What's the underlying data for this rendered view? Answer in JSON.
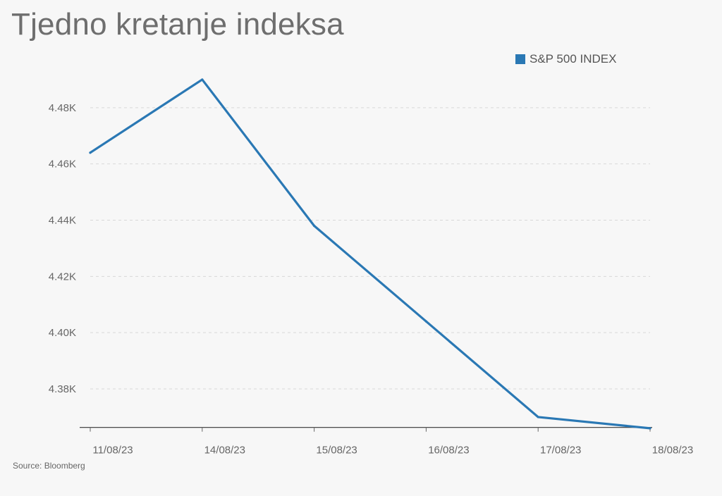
{
  "title": "Tjedno kretanje indeksa",
  "source": "Source: Bloomberg",
  "legend": {
    "label": "S&P 500 INDEX",
    "color": "#2a78b4"
  },
  "chart_data": {
    "type": "line",
    "title": "Tjedno kretanje indeksa",
    "xlabel": "",
    "ylabel": "",
    "categories": [
      "11/08/23",
      "14/08/23",
      "15/08/23",
      "16/08/23",
      "17/08/23",
      "18/08/23"
    ],
    "series": [
      {
        "name": "S&P 500 INDEX",
        "color": "#2a78b4",
        "values": [
          4464,
          4490,
          4438,
          4404,
          4370,
          4366
        ]
      }
    ],
    "yticks": [
      4380,
      4400,
      4420,
      4440,
      4460,
      4480
    ],
    "ytick_labels": [
      "4.38K",
      "4.40K",
      "4.42K",
      "4.44K",
      "4.46K",
      "4.48K"
    ],
    "ylim": [
      4366.3,
      4500
    ],
    "grid": true,
    "legend_position": "top-right"
  }
}
